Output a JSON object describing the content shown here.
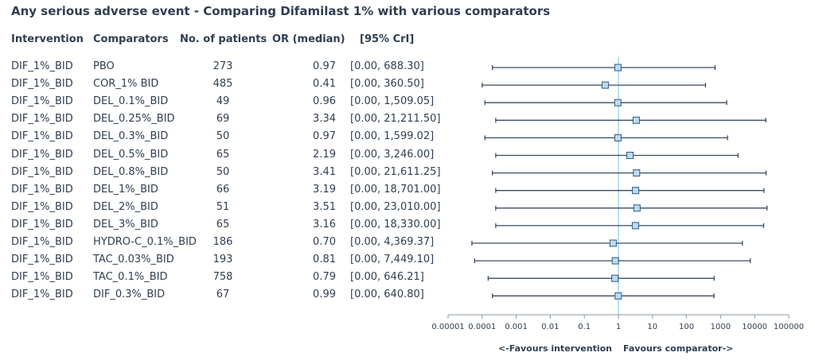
{
  "title": "Any serious adverse event - Comparing Difamilast 1% with various comparators",
  "headers": {
    "intervention": "Intervention",
    "comparators": "Comparators",
    "patients": "No. of patients",
    "or": "OR (median)",
    "ci": "[95% CrI]"
  },
  "rows": [
    {
      "intervention": "DIF_1%_BID",
      "comparator": "PBO",
      "patients": "273",
      "or": "0.97",
      "ci": "[0.00, 688.30]"
    },
    {
      "intervention": "DIF_1%_BID",
      "comparator": "COR_1% BID",
      "patients": "485",
      "or": "0.41",
      "ci": "[0.00, 360.50]"
    },
    {
      "intervention": "DIF_1%_BID",
      "comparator": "DEL_0.1%_BID",
      "patients": "49",
      "or": "0.96",
      "ci": "[0.00, 1,509.05]"
    },
    {
      "intervention": "DIF_1%_BID",
      "comparator": "DEL_0.25%_BID",
      "patients": "69",
      "or": "3.34",
      "ci": "[0.00, 21,211.50]"
    },
    {
      "intervention": "DIF_1%_BID",
      "comparator": "DEL_0.3%_BID",
      "patients": "50",
      "or": "0.97",
      "ci": "[0.00, 1,599.02]"
    },
    {
      "intervention": "DIF_1%_BID",
      "comparator": "DEL_0.5%_BID",
      "patients": "65",
      "or": "2.19",
      "ci": "[0.00, 3,246.00]"
    },
    {
      "intervention": "DIF_1%_BID",
      "comparator": "DEL_0.8%_BID",
      "patients": "50",
      "or": "3.41",
      "ci": "[0.00, 21,611.25]"
    },
    {
      "intervention": "DIF_1%_BID",
      "comparator": "DEL_1%_BID",
      "patients": "66",
      "or": "3.19",
      "ci": "[0.00, 18,701.00]"
    },
    {
      "intervention": "DIF_1%_BID",
      "comparator": "DEL_2%_BID",
      "patients": "51",
      "or": "3.51",
      "ci": "[0.00, 23,010.00]"
    },
    {
      "intervention": "DIF_1%_BID",
      "comparator": "DEL_3%_BID",
      "patients": "65",
      "or": "3.16",
      "ci": "[0.00, 18,330.00]"
    },
    {
      "intervention": "DIF_1%_BID",
      "comparator": "HYDRO-C_0.1%_BID",
      "patients": "186",
      "or": "0.70",
      "ci": "[0.00, 4,369.37]"
    },
    {
      "intervention": "DIF_1%_BID",
      "comparator": "TAC_0.03%_BID",
      "patients": "193",
      "or": "0.81",
      "ci": "[0.00, 7,449.10]"
    },
    {
      "intervention": "DIF_1%_BID",
      "comparator": "TAC_0.1%_BID",
      "patients": "758",
      "or": "0.79",
      "ci": "[0.00, 646.21]"
    },
    {
      "intervention": "DIF_1%_BID",
      "comparator": "DIF_0.3%_BID",
      "patients": "67",
      "or": "0.99",
      "ci": "[0.00, 640.80]"
    }
  ],
  "chart_data": {
    "type": "forest",
    "title": "Any serious adverse event - Comparing Difamilast 1% with various comparators",
    "x_scale": "log",
    "x_ticks": [
      "0.00001",
      "0.0001",
      "0.001",
      "0.01",
      "0.1",
      "1",
      "10",
      "100",
      "1000",
      "10000",
      "100000"
    ],
    "x_tick_values": [
      1e-05,
      0.0001,
      0.001,
      0.01,
      0.1,
      1,
      10,
      100,
      1000,
      10000,
      100000
    ],
    "xlim": [
      1e-05,
      100000
    ],
    "reference_line": 1,
    "left_label": "<-Favours intervention",
    "right_label": "Favours comparator->",
    "series": [
      {
        "category": "PBO",
        "or": 0.97,
        "lower": 0.0002,
        "upper": 688.3
      },
      {
        "category": "COR_1% BID",
        "or": 0.41,
        "lower": 0.0001,
        "upper": 360.5
      },
      {
        "category": "DEL_0.1%_BID",
        "or": 0.96,
        "lower": 0.00012,
        "upper": 1509.05
      },
      {
        "category": "DEL_0.25%_BID",
        "or": 3.34,
        "lower": 0.00025,
        "upper": 21211.5
      },
      {
        "category": "DEL_0.3%_BID",
        "or": 0.97,
        "lower": 0.00012,
        "upper": 1599.02
      },
      {
        "category": "DEL_0.5%_BID",
        "or": 2.19,
        "lower": 0.00025,
        "upper": 3246.0
      },
      {
        "category": "DEL_0.8%_BID",
        "or": 3.41,
        "lower": 0.0002,
        "upper": 21611.25
      },
      {
        "category": "DEL_1%_BID",
        "or": 3.19,
        "lower": 0.00025,
        "upper": 18701.0
      },
      {
        "category": "DEL_2%_BID",
        "or": 3.51,
        "lower": 0.00025,
        "upper": 23010.0
      },
      {
        "category": "DEL_3%_BID",
        "or": 3.16,
        "lower": 0.00025,
        "upper": 18330.0
      },
      {
        "category": "HYDRO-C_0.1%_BID",
        "or": 0.7,
        "lower": 5e-05,
        "upper": 4369.37
      },
      {
        "category": "TAC_0.03%_BID",
        "or": 0.81,
        "lower": 6e-05,
        "upper": 7449.1
      },
      {
        "category": "TAC_0.1%_BID",
        "or": 0.79,
        "lower": 0.00015,
        "upper": 646.21
      },
      {
        "category": "DIF_0.3%_BID",
        "or": 0.99,
        "lower": 0.0002,
        "upper": 640.8
      }
    ]
  },
  "colors": {
    "text": "#2f3e52",
    "ci_line": "#3b4a5e",
    "marker_fill": "#b9dcf2",
    "marker_stroke": "#2e5a80",
    "reference_line": "#a6d6ec",
    "axis": "#8a96a3"
  }
}
